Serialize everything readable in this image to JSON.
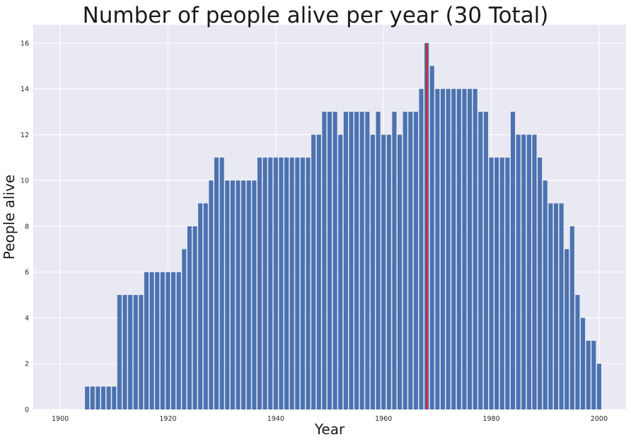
{
  "chart_data": {
    "type": "bar",
    "title": "Number of people alive per year (30 Total)",
    "xlabel": "Year",
    "ylabel": "People alive",
    "xlim": [
      1895,
      2005
    ],
    "ylim": [
      0,
      16.8
    ],
    "xticks": [
      1900,
      1920,
      1940,
      1960,
      1980,
      2000
    ],
    "yticks": [
      0,
      2,
      4,
      6,
      8,
      10,
      12,
      14,
      16
    ],
    "grid": true,
    "legend": "none",
    "colors": {
      "bar": "#4c72b0",
      "highlight": "#d62728",
      "background": "#e8e9f2",
      "grid": "#ffffff"
    },
    "highlight_year": 1968,
    "x": [
      1905,
      1906,
      1907,
      1908,
      1909,
      1910,
      1911,
      1912,
      1913,
      1914,
      1915,
      1916,
      1917,
      1918,
      1919,
      1920,
      1921,
      1922,
      1923,
      1924,
      1925,
      1926,
      1927,
      1928,
      1929,
      1930,
      1931,
      1932,
      1933,
      1934,
      1935,
      1936,
      1937,
      1938,
      1939,
      1940,
      1941,
      1942,
      1943,
      1944,
      1945,
      1946,
      1947,
      1948,
      1949,
      1950,
      1951,
      1952,
      1953,
      1954,
      1955,
      1956,
      1957,
      1958,
      1959,
      1960,
      1961,
      1962,
      1963,
      1964,
      1965,
      1966,
      1967,
      1968,
      1969,
      1970,
      1971,
      1972,
      1973,
      1974,
      1975,
      1976,
      1977,
      1978,
      1979,
      1980,
      1981,
      1982,
      1983,
      1984,
      1985,
      1986,
      1987,
      1988,
      1989,
      1990,
      1991,
      1992,
      1993,
      1994,
      1995,
      1996,
      1997,
      1998,
      1999,
      2000
    ],
    "values": [
      1,
      1,
      1,
      1,
      1,
      1,
      5,
      5,
      5,
      5,
      5,
      6,
      6,
      6,
      6,
      6,
      6,
      6,
      7,
      8,
      8,
      9,
      9,
      10,
      11,
      11,
      10,
      10,
      10,
      10,
      10,
      10,
      11,
      11,
      11,
      11,
      11,
      11,
      11,
      11,
      11,
      11,
      12,
      12,
      13,
      13,
      13,
      12,
      13,
      13,
      13,
      13,
      13,
      12,
      13,
      12,
      12,
      13,
      12,
      13,
      13,
      13,
      14,
      16,
      15,
      14,
      14,
      14,
      14,
      14,
      14,
      14,
      14,
      13,
      13,
      11,
      11,
      11,
      11,
      13,
      12,
      12,
      12,
      12,
      11,
      10,
      9,
      9,
      9,
      7,
      8,
      5,
      4,
      3,
      3,
      2
    ]
  }
}
